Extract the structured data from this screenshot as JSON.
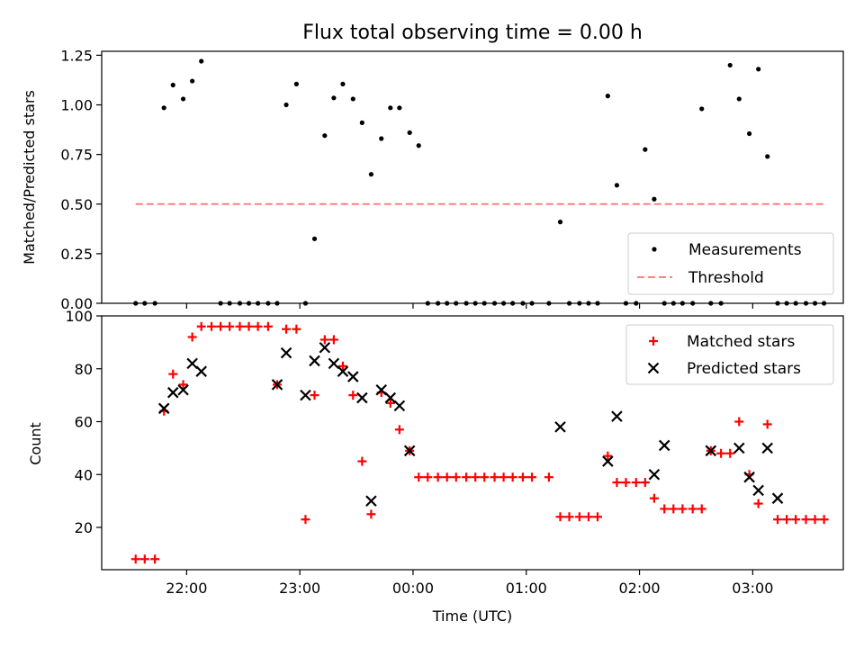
{
  "title": "Flux total observing time = 0.00 h",
  "colors": {
    "measurements": "#000000",
    "threshold": "#ff8080",
    "matched": "#ff0000",
    "predicted": "#000000"
  },
  "chart_data": [
    {
      "type": "scatter",
      "title": "Flux total observing time = 0.00 h",
      "ylabel": "Matched/Predicted stars",
      "xlabel": "",
      "x_unit": "hours (UTC); values past 24 denote the next day",
      "xlim": [
        21.25,
        27.8
      ],
      "ylim": [
        0.0,
        1.27
      ],
      "yticks": [
        0.0,
        0.25,
        0.5,
        0.75,
        1.0,
        1.25
      ],
      "ytick_labels": [
        "0.00",
        "0.25",
        "0.50",
        "0.75",
        "1.00",
        "1.25"
      ],
      "legend": {
        "position": "bottom-right",
        "entries": [
          "Measurements",
          "Threshold"
        ]
      },
      "series": [
        {
          "name": "Measurements",
          "marker": "dot",
          "x": [
            21.55,
            21.63,
            21.72,
            21.8,
            21.88,
            21.97,
            22.05,
            22.13,
            22.3,
            22.38,
            22.47,
            22.55,
            22.63,
            22.72,
            22.8,
            22.88,
            22.97,
            23.05,
            23.13,
            23.22,
            23.3,
            23.38,
            23.47,
            23.55,
            23.63,
            23.72,
            23.8,
            23.88,
            23.97,
            24.05,
            24.13,
            24.22,
            24.3,
            24.38,
            24.47,
            24.55,
            24.63,
            24.72,
            24.8,
            24.88,
            24.97,
            25.05,
            25.2,
            25.3,
            25.38,
            25.47,
            25.55,
            25.63,
            25.72,
            25.8,
            25.88,
            25.97,
            26.05,
            26.13,
            26.22,
            26.3,
            26.38,
            26.47,
            26.55,
            26.63,
            26.72,
            26.8,
            26.88,
            26.97,
            27.05,
            27.13,
            27.22,
            27.3,
            27.38,
            27.47,
            27.55,
            27.63
          ],
          "y": [
            0,
            0,
            0,
            0.985,
            1.1,
            1.03,
            1.12,
            1.22,
            0,
            0,
            0,
            0,
            0,
            0,
            0,
            1.0,
            1.105,
            0,
            0.325,
            0.845,
            1.035,
            1.105,
            1.03,
            0.91,
            0.65,
            0.83,
            0.985,
            0.985,
            0.86,
            0.795,
            0,
            0,
            0,
            0,
            0,
            0,
            0,
            0,
            0,
            0,
            0,
            0,
            0,
            0.41,
            0,
            0,
            0,
            0,
            1.045,
            0.595,
            0,
            0,
            0.775,
            0.525,
            0,
            0,
            0,
            0,
            0.98,
            0,
            0,
            1.2,
            1.03,
            0.855,
            1.18,
            0.74,
            0,
            0,
            0,
            0,
            0,
            0
          ]
        },
        {
          "name": "Threshold",
          "style": "dashed",
          "x": [
            21.55,
            27.63
          ],
          "y": [
            0.5,
            0.5
          ]
        }
      ]
    },
    {
      "type": "scatter",
      "xlabel": "Time (UTC)",
      "ylabel": "Count",
      "x_unit": "hours (UTC); values past 24 denote the next day",
      "xlim": [
        21.25,
        27.8
      ],
      "ylim": [
        4,
        100
      ],
      "yticks": [
        20,
        40,
        60,
        80,
        100
      ],
      "xticks": [
        22,
        23,
        24,
        25,
        26,
        27
      ],
      "xtick_labels": [
        "22:00",
        "23:00",
        "00:00",
        "01:00",
        "02:00",
        "03:00"
      ],
      "legend": {
        "position": "top-right",
        "entries": [
          "Matched stars",
          "Predicted stars"
        ]
      },
      "series": [
        {
          "name": "Matched stars",
          "marker": "plus",
          "x": [
            21.55,
            21.63,
            21.72,
            21.8,
            21.88,
            21.97,
            22.05,
            22.13,
            22.22,
            22.3,
            22.38,
            22.47,
            22.55,
            22.63,
            22.72,
            22.8,
            22.88,
            22.97,
            23.05,
            23.13,
            23.22,
            23.3,
            23.38,
            23.47,
            23.55,
            23.63,
            23.72,
            23.8,
            23.88,
            23.97,
            24.05,
            24.13,
            24.22,
            24.3,
            24.38,
            24.47,
            24.55,
            24.63,
            24.72,
            24.8,
            24.88,
            24.97,
            25.05,
            25.2,
            25.3,
            25.38,
            25.47,
            25.55,
            25.63,
            25.72,
            25.8,
            25.88,
            25.97,
            26.05,
            26.13,
            26.22,
            26.3,
            26.38,
            26.47,
            26.55,
            26.63,
            26.72,
            26.8,
            26.88,
            26.97,
            27.05,
            27.13,
            27.22,
            27.3,
            27.38,
            27.47,
            27.55,
            27.63
          ],
          "y": [
            8,
            8,
            8,
            64,
            78,
            74,
            92,
            96,
            96,
            96,
            96,
            96,
            96,
            96,
            96,
            74,
            95,
            95,
            23,
            70,
            91,
            91,
            81,
            70,
            45,
            25,
            71,
            67,
            57,
            49,
            39,
            39,
            39,
            39,
            39,
            39,
            39,
            39,
            39,
            39,
            39,
            39,
            39,
            39,
            24,
            24,
            24,
            24,
            24,
            47,
            37,
            37,
            37,
            37,
            31,
            27,
            27,
            27,
            27,
            27,
            49,
            48,
            48,
            60,
            40,
            29,
            59,
            23,
            23,
            23,
            23,
            23,
            23
          ]
        },
        {
          "name": "Predicted stars",
          "marker": "x",
          "x": [
            21.8,
            21.88,
            21.97,
            22.05,
            22.13,
            22.8,
            22.88,
            23.05,
            23.13,
            23.22,
            23.3,
            23.38,
            23.47,
            23.55,
            23.63,
            23.72,
            23.8,
            23.88,
            23.97,
            25.3,
            25.72,
            25.8,
            26.13,
            26.22,
            26.63,
            26.88,
            26.97,
            27.05,
            27.13,
            27.22
          ],
          "y": [
            65,
            71,
            72,
            82,
            79,
            74,
            86,
            70,
            83,
            88,
            82,
            79,
            77,
            69,
            30,
            72,
            69,
            66,
            49,
            58,
            45,
            62,
            40,
            51,
            49,
            50,
            39,
            34,
            50,
            31
          ]
        }
      ]
    }
  ]
}
